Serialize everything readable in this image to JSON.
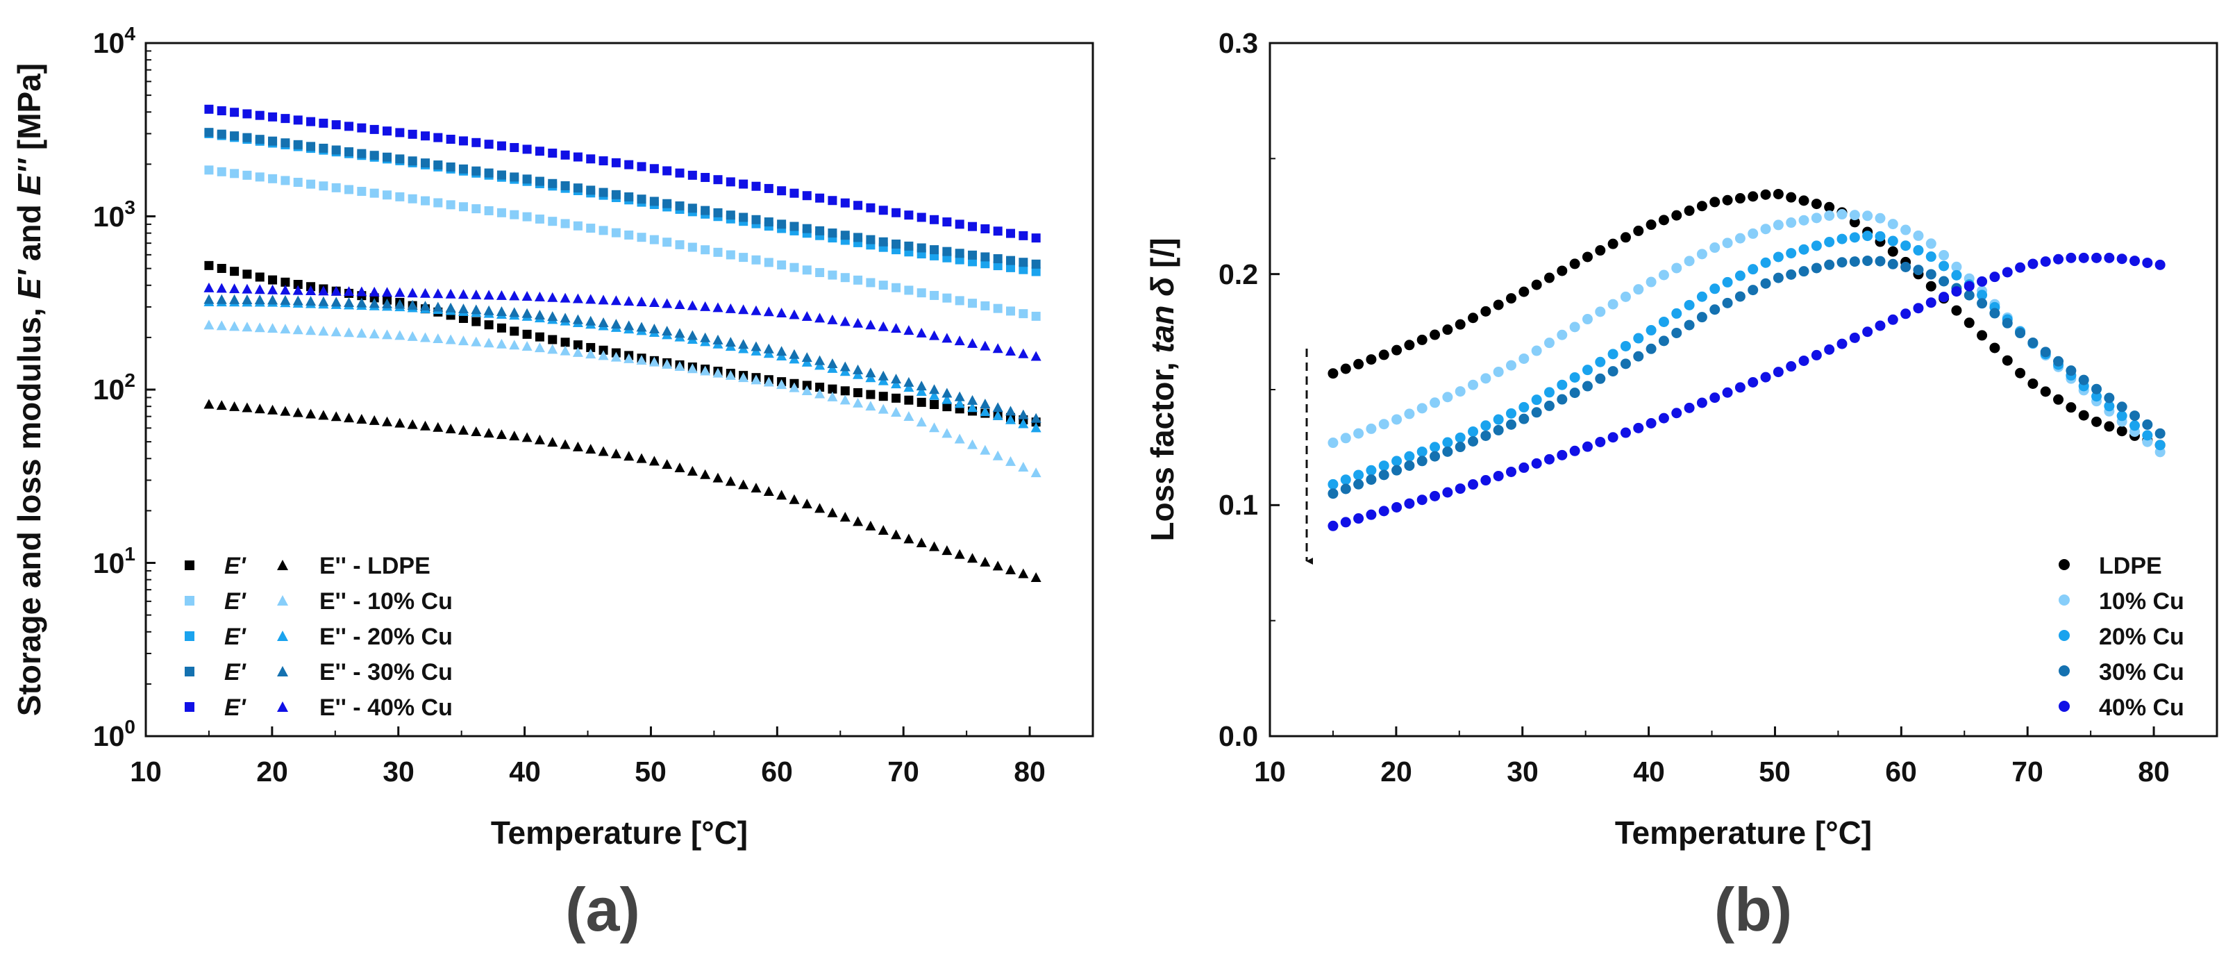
{
  "chart_data": [
    {
      "type": "scatter",
      "panel_label": "(a)",
      "xlabel": "Temperature [°C]",
      "ylabel": "Storage and loss modulus, E' and E'' [MPa]",
      "ylabel_parts": {
        "pre": "Storage and loss modulus, ",
        "e1": "E'",
        "mid": " and ",
        "e2": "E''",
        "post": " [MPa]"
      },
      "xscale": "linear",
      "yscale": "log",
      "xlim": [
        10,
        85
      ],
      "ylim": [
        1,
        10000
      ],
      "x_ticks": [
        "10",
        "20",
        "30",
        "40",
        "50",
        "60",
        "70",
        "80"
      ],
      "y_ticks": [
        {
          "base": "10",
          "exp": "0"
        },
        {
          "base": "10",
          "exp": "1"
        },
        {
          "base": "10",
          "exp": "2"
        },
        {
          "base": "10",
          "exp": "3"
        },
        {
          "base": "10",
          "exp": "4"
        }
      ],
      "legend_position": "bottom-left",
      "series": [
        {
          "name": "E' - LDPE",
          "legend_left": "E'",
          "legend_right": "E'' - LDPE",
          "sample": "LDPE",
          "color": "#000000",
          "storage": [
            [
              15,
              520
            ],
            [
              20,
              430
            ],
            [
              30,
              320
            ],
            [
              40,
              210
            ],
            [
              50,
              148
            ],
            [
              60,
              112
            ],
            [
              70,
              88
            ],
            [
              80.5,
              65
            ]
          ],
          "loss": [
            [
              15,
              82
            ],
            [
              20,
              76
            ],
            [
              30,
              64
            ],
            [
              40,
              53
            ],
            [
              50,
              39
            ],
            [
              60,
              25
            ],
            [
              70,
              14
            ],
            [
              80.5,
              8.2
            ]
          ]
        },
        {
          "name": "10% Cu",
          "legend_left": "E'",
          "legend_right": "E'' - 10% Cu",
          "sample": "10% Cu",
          "color": "#87cefa",
          "storage": [
            [
              15,
              1850
            ],
            [
              20,
              1650
            ],
            [
              30,
              1300
            ],
            [
              40,
              1000
            ],
            [
              50,
              740
            ],
            [
              60,
              530
            ],
            [
              70,
              380
            ],
            [
              80.5,
              265
            ]
          ],
          "loss": [
            [
              15,
              235
            ],
            [
              20,
              225
            ],
            [
              30,
              205
            ],
            [
              40,
              178
            ],
            [
              50,
              145
            ],
            [
              60,
              108
            ],
            [
              70,
              72
            ],
            [
              80.5,
              33
            ]
          ]
        },
        {
          "name": "20% Cu",
          "legend_left": "E'",
          "legend_right": "E'' - 20% Cu",
          "sample": "20% Cu",
          "color": "#1aa3ee",
          "storage": [
            [
              15,
              3000
            ],
            [
              20,
              2650
            ],
            [
              30,
              2100
            ],
            [
              40,
              1600
            ],
            [
              50,
              1180
            ],
            [
              60,
              860
            ],
            [
              70,
              630
            ],
            [
              80.5,
              480
            ]
          ],
          "loss": [
            [
              15,
              320
            ],
            [
              20,
              318
            ],
            [
              30,
              300
            ],
            [
              40,
              265
            ],
            [
              50,
              215
            ],
            [
              60,
              158
            ],
            [
              70,
              105
            ],
            [
              80.5,
              60
            ]
          ]
        },
        {
          "name": "30% Cu",
          "legend_left": "E'",
          "legend_right": "E'' - 30% Cu",
          "sample": "30% Cu",
          "color": "#1471b0",
          "storage": [
            [
              15,
              3050
            ],
            [
              20,
              2720
            ],
            [
              30,
              2150
            ],
            [
              40,
              1650
            ],
            [
              50,
              1230
            ],
            [
              60,
              910
            ],
            [
              70,
              680
            ],
            [
              80.5,
              530
            ]
          ],
          "loss": [
            [
              15,
              330
            ],
            [
              20,
              328
            ],
            [
              30,
              310
            ],
            [
              40,
              275
            ],
            [
              50,
              225
            ],
            [
              60,
              168
            ],
            [
              70,
              112
            ],
            [
              80.5,
              68
            ]
          ]
        },
        {
          "name": "40% Cu",
          "legend_left": "E'",
          "legend_right": "E'' - 40% Cu",
          "sample": "40% Cu",
          "color": "#1010e6",
          "storage": [
            [
              15,
              4150
            ],
            [
              20,
              3750
            ],
            [
              30,
              3050
            ],
            [
              40,
              2450
            ],
            [
              50,
              1900
            ],
            [
              60,
              1420
            ],
            [
              70,
              1030
            ],
            [
              80.5,
              750
            ]
          ],
          "loss": [
            [
              15,
              385
            ],
            [
              20,
              375
            ],
            [
              30,
              362
            ],
            [
              40,
              345
            ],
            [
              50,
              318
            ],
            [
              60,
              278
            ],
            [
              70,
              222
            ],
            [
              80.5,
              155
            ]
          ]
        }
      ]
    },
    {
      "type": "scatter",
      "panel_label": "(b)",
      "xlabel": "Temperature [°C]",
      "ylabel": "Loss factor, tan δ [/]",
      "ylabel_parts": {
        "pre": "Loss factor, ",
        "ital": "tan δ",
        "post": " [/]"
      },
      "xscale": "linear",
      "yscale": "linear",
      "xlim": [
        10,
        85
      ],
      "ylim": [
        0.0,
        0.3
      ],
      "x_ticks": [
        "10",
        "20",
        "30",
        "40",
        "50",
        "60",
        "70",
        "80"
      ],
      "y_ticks": [
        "0.0",
        "0.1",
        "0.2",
        "0.3"
      ],
      "legend_position": "bottom-right",
      "annotation": "dashed downward arrow indicating decrease with increasing Cu content",
      "series": [
        {
          "name": "LDPE",
          "color": "#000000",
          "points": [
            [
              15,
              0.157
            ],
            [
              20,
              0.167
            ],
            [
              25,
              0.178
            ],
            [
              30,
              0.192
            ],
            [
              35,
              0.207
            ],
            [
              40,
              0.221
            ],
            [
              45,
              0.231
            ],
            [
              50,
              0.235
            ],
            [
              55,
              0.228
            ],
            [
              60,
              0.207
            ],
            [
              65,
              0.181
            ],
            [
              70,
              0.154
            ],
            [
              75,
              0.137
            ],
            [
              80.5,
              0.126
            ]
          ]
        },
        {
          "name": "10% Cu",
          "color": "#87cefa",
          "points": [
            [
              15,
              0.127
            ],
            [
              20,
              0.137
            ],
            [
              25,
              0.149
            ],
            [
              30,
              0.163
            ],
            [
              35,
              0.18
            ],
            [
              40,
              0.196
            ],
            [
              45,
              0.211
            ],
            [
              50,
              0.221
            ],
            [
              55,
              0.226
            ],
            [
              58,
              0.225
            ],
            [
              62,
              0.215
            ],
            [
              66,
              0.195
            ],
            [
              70,
              0.172
            ],
            [
              75,
              0.147
            ],
            [
              80.5,
              0.123
            ]
          ]
        },
        {
          "name": "20% Cu",
          "color": "#1aa3ee",
          "points": [
            [
              15,
              0.109
            ],
            [
              20,
              0.119
            ],
            [
              25,
              0.129
            ],
            [
              30,
              0.142
            ],
            [
              35,
              0.158
            ],
            [
              40,
              0.175
            ],
            [
              45,
              0.193
            ],
            [
              50,
              0.207
            ],
            [
              55,
              0.215
            ],
            [
              58,
              0.217
            ],
            [
              62,
              0.209
            ],
            [
              66,
              0.193
            ],
            [
              70,
              0.172
            ],
            [
              75,
              0.149
            ],
            [
              80.5,
              0.126
            ]
          ]
        },
        {
          "name": "30% Cu",
          "color": "#1471b0",
          "points": [
            [
              15,
              0.105
            ],
            [
              20,
              0.115
            ],
            [
              25,
              0.125
            ],
            [
              30,
              0.137
            ],
            [
              35,
              0.151
            ],
            [
              40,
              0.167
            ],
            [
              45,
              0.184
            ],
            [
              50,
              0.198
            ],
            [
              55,
              0.205
            ],
            [
              58,
              0.206
            ],
            [
              62,
              0.201
            ],
            [
              66,
              0.189
            ],
            [
              70,
              0.172
            ],
            [
              75,
              0.152
            ],
            [
              80.5,
              0.131
            ]
          ]
        },
        {
          "name": "40% Cu",
          "color": "#1010e6",
          "points": [
            [
              15,
              0.091
            ],
            [
              20,
              0.099
            ],
            [
              25,
              0.107
            ],
            [
              30,
              0.116
            ],
            [
              35,
              0.125
            ],
            [
              40,
              0.135
            ],
            [
              45,
              0.146
            ],
            [
              50,
              0.157
            ],
            [
              55,
              0.169
            ],
            [
              60,
              0.182
            ],
            [
              65,
              0.194
            ],
            [
              70,
              0.204
            ],
            [
              73,
              0.207
            ],
            [
              77,
              0.207
            ],
            [
              80.5,
              0.204
            ]
          ]
        }
      ]
    }
  ]
}
